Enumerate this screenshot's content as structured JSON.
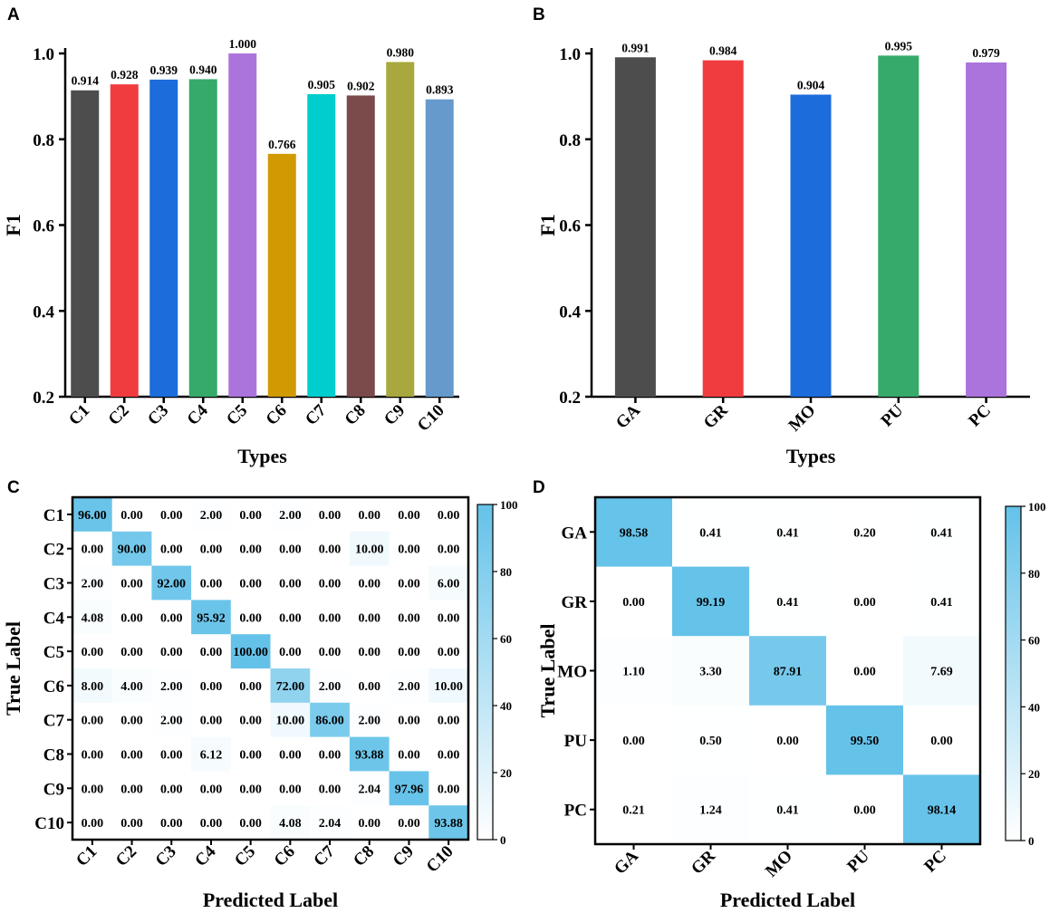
{
  "chart_data": [
    {
      "panel": "A",
      "type": "bar",
      "categories": [
        "C1",
        "C2",
        "C3",
        "C4",
        "C5",
        "C6",
        "C7",
        "C8",
        "C9",
        "C10"
      ],
      "values": [
        0.914,
        0.928,
        0.939,
        0.94,
        1.0,
        0.766,
        0.905,
        0.902,
        0.98,
        0.893
      ],
      "value_labels": [
        "0.914",
        "0.928",
        "0.939",
        "0.940",
        "1.000",
        "0.766",
        "0.905",
        "0.902",
        "0.980",
        "0.893"
      ],
      "colors": [
        "#4d4d4d",
        "#f03c3f",
        "#1c6cdc",
        "#35aa6a",
        "#ab74dc",
        "#d19a02",
        "#00cdcd",
        "#7b4a4a",
        "#a9a83e",
        "#669acc"
      ],
      "xlabel": "Types",
      "ylabel": "F1",
      "ylim": [
        0.2,
        1.0
      ],
      "yticks": [
        "0.2",
        "0.4",
        "0.6",
        "0.8",
        "1.0"
      ]
    },
    {
      "panel": "B",
      "type": "bar",
      "categories": [
        "GA",
        "GR",
        "MO",
        "PU",
        "PC"
      ],
      "values": [
        0.991,
        0.984,
        0.904,
        0.995,
        0.979
      ],
      "value_labels": [
        "0.991",
        "0.984",
        "0.904",
        "0.995",
        "0.979"
      ],
      "colors": [
        "#4d4d4d",
        "#f03c3f",
        "#1c6cdc",
        "#35aa6a",
        "#ab74dc"
      ],
      "xlabel": "Types",
      "ylabel": "F1",
      "ylim": [
        0.2,
        1.0
      ],
      "yticks": [
        "0.2",
        "0.4",
        "0.6",
        "0.8",
        "1.0"
      ]
    },
    {
      "panel": "C",
      "type": "heatmap",
      "categories": [
        "C1",
        "C2",
        "C3",
        "C4",
        "C5",
        "C6",
        "C7",
        "C8",
        "C9",
        "C10"
      ],
      "values": [
        [
          96.0,
          0.0,
          0.0,
          2.0,
          0.0,
          2.0,
          0.0,
          0.0,
          0.0,
          0.0
        ],
        [
          0.0,
          90.0,
          0.0,
          0.0,
          0.0,
          0.0,
          0.0,
          10.0,
          0.0,
          0.0
        ],
        [
          2.0,
          0.0,
          92.0,
          0.0,
          0.0,
          0.0,
          0.0,
          0.0,
          0.0,
          6.0
        ],
        [
          4.08,
          0.0,
          0.0,
          95.92,
          0.0,
          0.0,
          0.0,
          0.0,
          0.0,
          0.0
        ],
        [
          0.0,
          0.0,
          0.0,
          0.0,
          100.0,
          0.0,
          0.0,
          0.0,
          0.0,
          0.0
        ],
        [
          8.0,
          4.0,
          2.0,
          0.0,
          0.0,
          72.0,
          2.0,
          0.0,
          2.0,
          10.0
        ],
        [
          0.0,
          0.0,
          2.0,
          0.0,
          0.0,
          10.0,
          86.0,
          2.0,
          0.0,
          0.0
        ],
        [
          0.0,
          0.0,
          0.0,
          6.12,
          0.0,
          0.0,
          0.0,
          93.88,
          0.0,
          0.0
        ],
        [
          0.0,
          0.0,
          0.0,
          0.0,
          0.0,
          0.0,
          0.0,
          2.04,
          97.96,
          0.0
        ],
        [
          0.0,
          0.0,
          0.0,
          0.0,
          0.0,
          4.08,
          2.04,
          0.0,
          0.0,
          93.88
        ]
      ],
      "cell_labels": [
        [
          "96.00",
          "0.00",
          "0.00",
          "2.00",
          "0.00",
          "2.00",
          "0.00",
          "0.00",
          "0.00",
          "0.00"
        ],
        [
          "0.00",
          "90.00",
          "0.00",
          "0.00",
          "0.00",
          "0.00",
          "0.00",
          "10.00",
          "0.00",
          "0.00"
        ],
        [
          "2.00",
          "0.00",
          "92.00",
          "0.00",
          "0.00",
          "0.00",
          "0.00",
          "0.00",
          "0.00",
          "6.00"
        ],
        [
          "4.08",
          "0.00",
          "0.00",
          "95.92",
          "0.00",
          "0.00",
          "0.00",
          "0.00",
          "0.00",
          "0.00"
        ],
        [
          "0.00",
          "0.00",
          "0.00",
          "0.00",
          "100.00",
          "0.00",
          "0.00",
          "0.00",
          "0.00",
          "0.00"
        ],
        [
          "8.00",
          "4.00",
          "2.00",
          "0.00",
          "0.00",
          "72.00",
          "2.00",
          "0.00",
          "2.00",
          "10.00"
        ],
        [
          "0.00",
          "0.00",
          "2.00",
          "0.00",
          "0.00",
          "10.00",
          "86.00",
          "2.00",
          "0.00",
          "0.00"
        ],
        [
          "0.00",
          "0.00",
          "0.00",
          "6.12",
          "0.00",
          "0.00",
          "0.00",
          "93.88",
          "0.00",
          "0.00"
        ],
        [
          "0.00",
          "0.00",
          "0.00",
          "0.00",
          "0.00",
          "0.00",
          "0.00",
          "2.04",
          "97.96",
          "0.00"
        ],
        [
          "0.00",
          "0.00",
          "0.00",
          "0.00",
          "0.00",
          "4.08",
          "2.04",
          "0.00",
          "0.00",
          "93.88"
        ]
      ],
      "xlabel": "Predicted  Label",
      "ylabel": "True  Label",
      "colorbar_range": [
        0,
        100
      ],
      "colorbar_ticks": [
        "0",
        "20",
        "40",
        "60",
        "80",
        "100"
      ],
      "colormap": [
        "#ffffff",
        "#64c2e9"
      ]
    },
    {
      "panel": "D",
      "type": "heatmap",
      "categories": [
        "GA",
        "GR",
        "MO",
        "PU",
        "PC"
      ],
      "values": [
        [
          98.58,
          0.41,
          0.41,
          0.2,
          0.41
        ],
        [
          0.0,
          99.19,
          0.41,
          0.0,
          0.41
        ],
        [
          1.1,
          3.3,
          87.91,
          0.0,
          7.69
        ],
        [
          0.0,
          0.5,
          0.0,
          99.5,
          0.0
        ],
        [
          0.21,
          1.24,
          0.41,
          0.0,
          98.14
        ]
      ],
      "cell_labels": [
        [
          "98.58",
          "0.41",
          "0.41",
          "0.20",
          "0.41"
        ],
        [
          "0.00",
          "99.19",
          "0.41",
          "0.00",
          "0.41"
        ],
        [
          "1.10",
          "3.30",
          "87.91",
          "0.00",
          "7.69"
        ],
        [
          "0.00",
          "0.50",
          "0.00",
          "99.50",
          "0.00"
        ],
        [
          "0.21",
          "1.24",
          "0.41",
          "0.00",
          "98.14"
        ]
      ],
      "xlabel": "Predicted  Label",
      "ylabel": "True  Label",
      "colorbar_range": [
        0,
        100
      ],
      "colorbar_ticks": [
        "0",
        "20",
        "40",
        "60",
        "80",
        "100"
      ],
      "colormap": [
        "#ffffff",
        "#64c2e9"
      ]
    }
  ]
}
